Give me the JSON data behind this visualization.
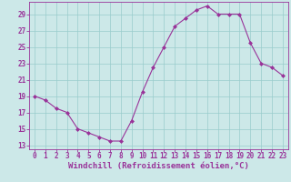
{
  "x": [
    0,
    1,
    2,
    3,
    4,
    5,
    6,
    7,
    8,
    9,
    10,
    11,
    12,
    13,
    14,
    15,
    16,
    17,
    18,
    19,
    20,
    21,
    22,
    23
  ],
  "y": [
    19,
    18.5,
    17.5,
    17,
    15,
    14.5,
    14,
    13.5,
    13.5,
    16,
    19.5,
    22.5,
    25,
    27.5,
    28.5,
    29.5,
    30,
    29,
    29,
    29,
    25.5,
    23,
    22.5,
    21.5
  ],
  "line_color": "#993399",
  "marker_color": "#993399",
  "bg_color": "#cce8e8",
  "grid_color": "#99cccc",
  "xlabel": "Windchill (Refroidissement éolien,°C)",
  "xlabel_color": "#993399",
  "tick_color": "#993399",
  "spine_color": "#993399",
  "ylim": [
    12.5,
    30.5
  ],
  "yticks": [
    13,
    15,
    17,
    19,
    21,
    23,
    25,
    27,
    29
  ],
  "xlim": [
    -0.5,
    23.5
  ],
  "xticks": [
    0,
    1,
    2,
    3,
    4,
    5,
    6,
    7,
    8,
    9,
    10,
    11,
    12,
    13,
    14,
    15,
    16,
    17,
    18,
    19,
    20,
    21,
    22,
    23
  ],
  "tick_fontsize": 5.5,
  "xlabel_fontsize": 6.5
}
